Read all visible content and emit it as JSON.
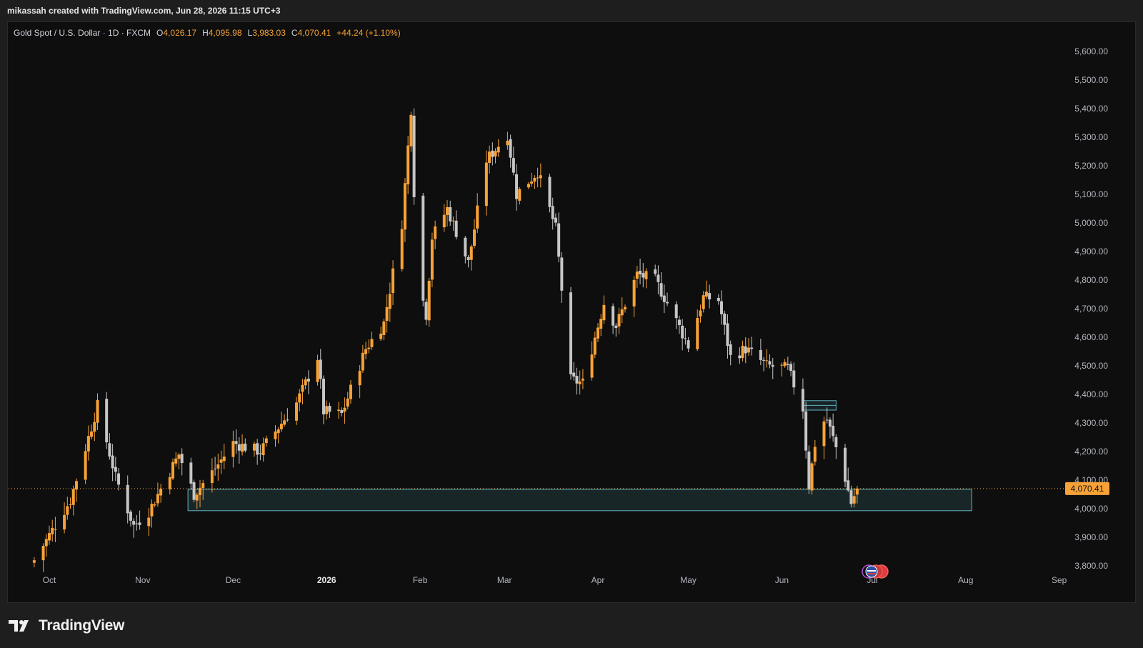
{
  "header": {
    "attribution": "mikassah created with TradingView.com, Jun 28, 2026 11:15 UTC+3"
  },
  "legend": {
    "symbol": "Gold Spot / U.S. Dollar · 1D · FXCM",
    "open_key": "O",
    "open_val": "4,026.17",
    "high_key": "H",
    "high_val": "4,095.98",
    "low_key": "L",
    "low_val": "3,983.03",
    "close_key": "C",
    "close_val": "4,070.41",
    "change": "+44.24 (+1.10%)"
  },
  "colors": {
    "up": "#f7a237",
    "down": "#c6c6c6",
    "zone": "#5fb7c4",
    "price_tag": "#f7a237",
    "background": "#0e0e0e"
  },
  "footer": {
    "brand": "TradingView",
    "logo_icon": "tradingview-logo-icon"
  },
  "chart_data": {
    "type": "candlestick",
    "y_axis": {
      "min": 3800,
      "max": 5650,
      "ticks": [
        3800,
        3900,
        4000,
        4100,
        4200,
        4300,
        4400,
        4500,
        4600,
        4700,
        4800,
        4900,
        5000,
        5100,
        5200,
        5300,
        5400,
        5500,
        5600
      ],
      "tick_labels": [
        "3,800.00",
        "3,900.00",
        "4,000.00",
        "4,100.00",
        "4,200.00",
        "4,300.00",
        "4,400.00",
        "4,500.00",
        "4,600.00",
        "4,700.00",
        "4,800.00",
        "4,900.00",
        "5,000.00",
        "5,100.00",
        "5,200.00",
        "5,300.00",
        "5,400.00",
        "5,500.00",
        "5,600.00"
      ]
    },
    "x_axis": {
      "start_date": "2025-09-24",
      "end_date": "2026-09-01",
      "labels": [
        {
          "text": "Oct",
          "date": "2025-10-01",
          "bold": false
        },
        {
          "text": "Nov",
          "date": "2025-11-01",
          "bold": false
        },
        {
          "text": "Dec",
          "date": "2025-12-01",
          "bold": false
        },
        {
          "text": "2026",
          "date": "2026-01-01",
          "bold": true
        },
        {
          "text": "Feb",
          "date": "2026-02-01",
          "bold": false
        },
        {
          "text": "Mar",
          "date": "2026-03-01",
          "bold": false
        },
        {
          "text": "Apr",
          "date": "2026-04-01",
          "bold": false
        },
        {
          "text": "May",
          "date": "2026-05-01",
          "bold": false
        },
        {
          "text": "Jun",
          "date": "2026-06-01",
          "bold": false
        },
        {
          "text": "Jul",
          "date": "2026-07-01",
          "bold": false
        },
        {
          "text": "Aug",
          "date": "2026-08-01",
          "bold": false
        },
        {
          "text": "Sep",
          "date": "2026-09-01",
          "bold": false
        }
      ]
    },
    "last_price": 4070.41,
    "last_price_label": "4,070.41",
    "price_waypoints": [
      [
        "2025-09-26",
        3820
      ],
      [
        "2025-10-08",
        4030
      ],
      [
        "2025-10-17",
        4360
      ],
      [
        "2025-10-23",
        4110
      ],
      [
        "2025-10-29",
        3940
      ],
      [
        "2025-11-03",
        3990
      ],
      [
        "2025-11-13",
        4190
      ],
      [
        "2025-11-18",
        4050
      ],
      [
        "2025-11-25",
        4140
      ],
      [
        "2025-12-01",
        4230
      ],
      [
        "2025-12-10",
        4200
      ],
      [
        "2025-12-22",
        4370
      ],
      [
        "2025-12-29",
        4530
      ],
      [
        "2025-12-31",
        4340
      ],
      [
        "2026-01-06",
        4330
      ],
      [
        "2026-01-14",
        4560
      ],
      [
        "2026-01-20",
        4650
      ],
      [
        "2026-01-26",
        5000
      ],
      [
        "2026-01-29",
        5400
      ],
      [
        "2026-01-31",
        4820
      ],
      [
        "2026-02-03",
        4680
      ],
      [
        "2026-02-05",
        4950
      ],
      [
        "2026-02-10",
        5050
      ],
      [
        "2026-02-17",
        4860
      ],
      [
        "2026-02-23",
        5220
      ],
      [
        "2026-03-02",
        5310
      ],
      [
        "2026-03-05",
        5100
      ],
      [
        "2026-03-12",
        5180
      ],
      [
        "2026-03-18",
        4980
      ],
      [
        "2026-03-23",
        4450
      ],
      [
        "2026-03-27",
        4440
      ],
      [
        "2026-04-03",
        4720
      ],
      [
        "2026-04-07",
        4640
      ],
      [
        "2026-04-14",
        4820
      ],
      [
        "2026-04-20",
        4800
      ],
      [
        "2026-04-25",
        4700
      ],
      [
        "2026-05-01",
        4570
      ],
      [
        "2026-05-06",
        4740
      ],
      [
        "2026-05-11",
        4730
      ],
      [
        "2026-05-15",
        4530
      ],
      [
        "2026-05-20",
        4560
      ],
      [
        "2026-05-27",
        4500
      ],
      [
        "2026-06-03",
        4490
      ],
      [
        "2026-06-08",
        4350
      ],
      [
        "2026-06-10",
        4080
      ],
      [
        "2026-06-13",
        4300
      ],
      [
        "2026-06-16",
        4310
      ],
      [
        "2026-06-21",
        4150
      ],
      [
        "2026-06-24",
        4020
      ],
      [
        "2026-06-26",
        4070.41
      ]
    ],
    "annotations": {
      "support_zone": {
        "start_date": "2025-11-16",
        "end_date": "2026-08-03",
        "low": 3993,
        "high": 4068
      },
      "small_zone": {
        "start_date": "2026-06-08",
        "end_date": "2026-06-19",
        "low": 4345,
        "high": 4378
      }
    }
  }
}
